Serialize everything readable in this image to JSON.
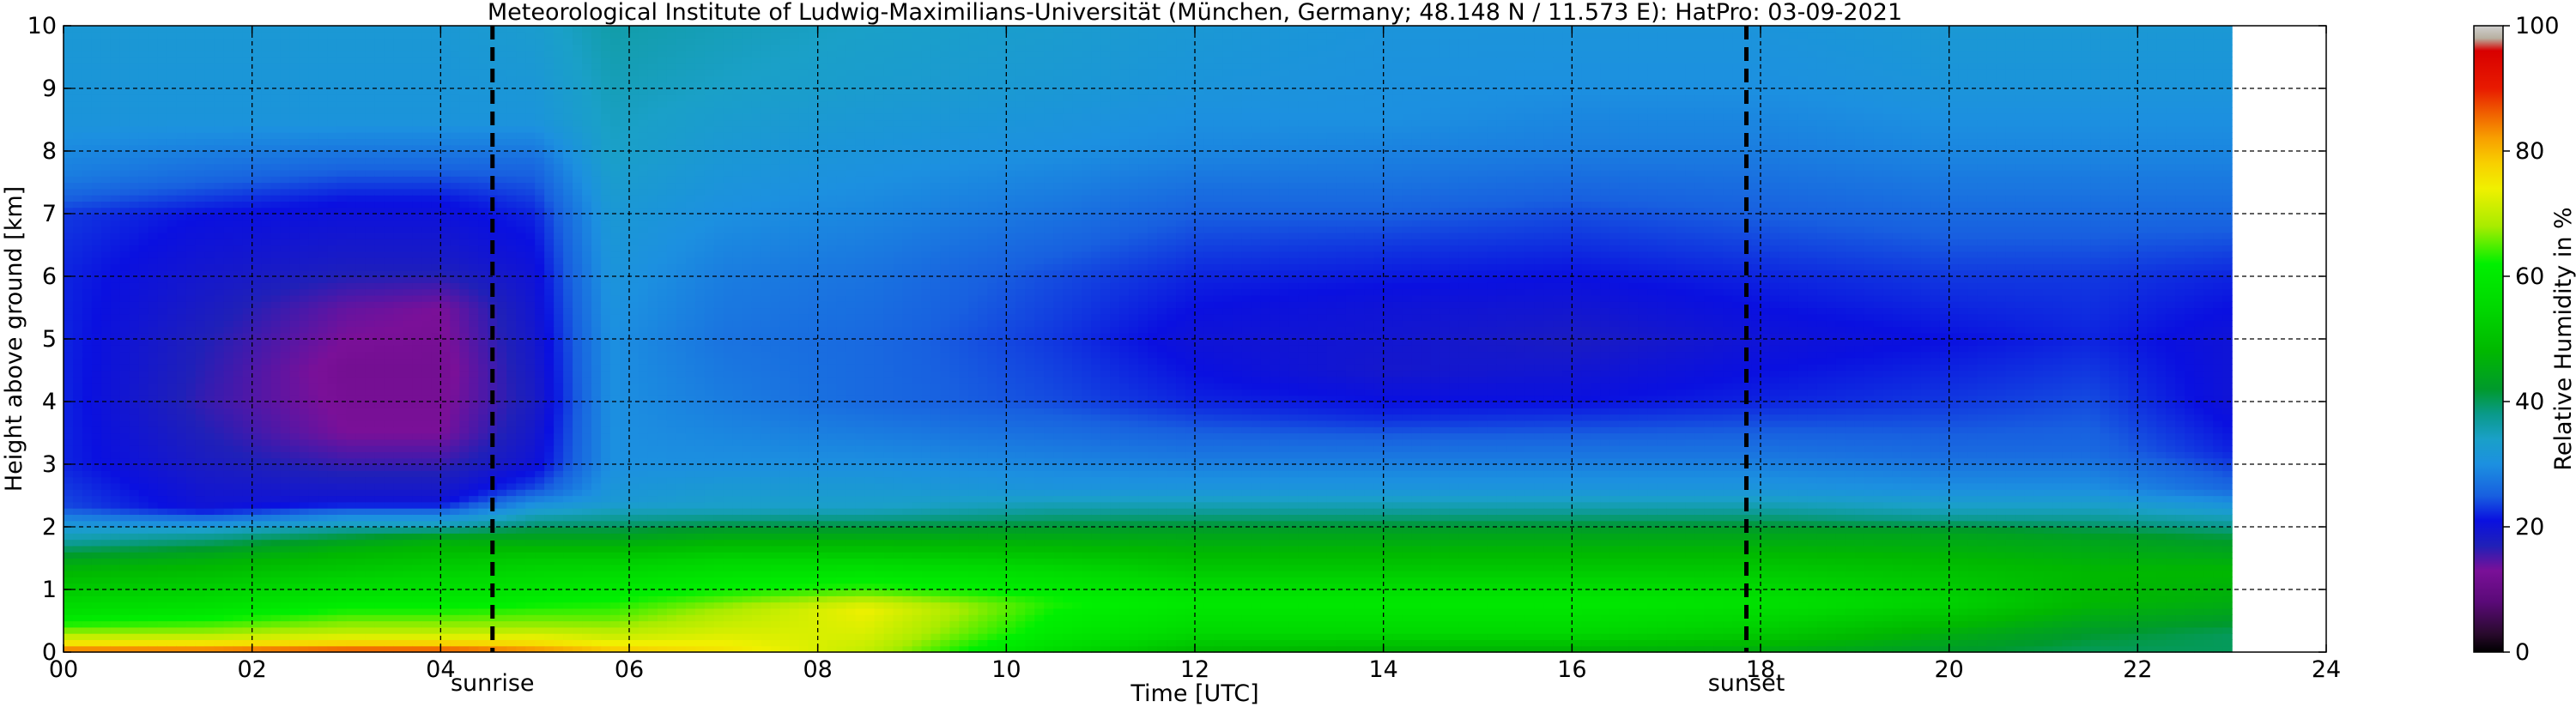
{
  "chart_data": {
    "type": "heatmap",
    "title": "Meteorological Institute of Ludwig-Maximilians-Universität (München, Germany; 48.148 N / 11.573 E):    HatPro: 03-09-2021",
    "xlabel": "Time [UTC]",
    "ylabel": "Height above ground [km]",
    "colorbar_label": "Relative Humidity in %",
    "xlim": [
      0,
      24
    ],
    "ylim": [
      0,
      10
    ],
    "data_end_time": 23,
    "x_ticks": [
      0,
      2,
      4,
      6,
      8,
      10,
      12,
      14,
      16,
      18,
      20,
      22,
      24
    ],
    "x_tick_labels": [
      "00",
      "02",
      "04",
      "06",
      "08",
      "10",
      "12",
      "14",
      "16",
      "18",
      "20",
      "22",
      "24"
    ],
    "y_ticks": [
      0,
      1,
      2,
      3,
      4,
      5,
      6,
      7,
      8,
      9,
      10
    ],
    "y_tick_labels": [
      "0",
      "1",
      "2",
      "3",
      "4",
      "5",
      "6",
      "7",
      "8",
      "9",
      "10"
    ],
    "colorbar_ticks": [
      0,
      20,
      40,
      60,
      80,
      100
    ],
    "colorbar_tick_labels": [
      "0",
      "20",
      "40",
      "60",
      "80",
      "100"
    ],
    "grid": true,
    "events": [
      {
        "label": "sunrise",
        "time": 4.55
      },
      {
        "label": "sunset",
        "time": 17.85
      }
    ],
    "colormap": [
      {
        "value": 0,
        "color": "#000000"
      },
      {
        "value": 3,
        "color": "#2a0a2e"
      },
      {
        "value": 8,
        "color": "#5a0a78"
      },
      {
        "value": 13,
        "color": "#7a1098"
      },
      {
        "value": 17,
        "color": "#2020b8"
      },
      {
        "value": 21,
        "color": "#0a10e0"
      },
      {
        "value": 25,
        "color": "#1860e0"
      },
      {
        "value": 30,
        "color": "#1c90e0"
      },
      {
        "value": 34,
        "color": "#1aa0c8"
      },
      {
        "value": 38,
        "color": "#0a9a8a"
      },
      {
        "value": 42,
        "color": "#009a2c"
      },
      {
        "value": 48,
        "color": "#00b800"
      },
      {
        "value": 55,
        "color": "#00d800"
      },
      {
        "value": 62,
        "color": "#00f000"
      },
      {
        "value": 68,
        "color": "#a8ec00"
      },
      {
        "value": 74,
        "color": "#f0f000"
      },
      {
        "value": 78,
        "color": "#f8d000"
      },
      {
        "value": 82,
        "color": "#f8a000"
      },
      {
        "value": 86,
        "color": "#f06000"
      },
      {
        "value": 90,
        "color": "#e81a00"
      },
      {
        "value": 96,
        "color": "#d80000"
      },
      {
        "value": 98,
        "color": "#b8b0a0"
      },
      {
        "value": 100,
        "color": "#d0d0d0"
      }
    ],
    "rh_profiles": [
      {
        "time": 0.0,
        "levels": [
          [
            0.0,
            88
          ],
          [
            0.1,
            78
          ],
          [
            0.3,
            68
          ],
          [
            0.6,
            58
          ],
          [
            1.0,
            52
          ],
          [
            1.4,
            46
          ],
          [
            1.8,
            36
          ],
          [
            2.1,
            30
          ],
          [
            2.3,
            24
          ],
          [
            3.0,
            22
          ],
          [
            4.0,
            22
          ],
          [
            5.0,
            22
          ],
          [
            6.0,
            22
          ],
          [
            7.0,
            23
          ],
          [
            7.6,
            28
          ],
          [
            8.5,
            31
          ],
          [
            10.0,
            32
          ]
        ]
      },
      {
        "time": 1.5,
        "levels": [
          [
            0.0,
            88
          ],
          [
            0.1,
            78
          ],
          [
            0.3,
            68
          ],
          [
            0.7,
            58
          ],
          [
            1.1,
            52
          ],
          [
            1.5,
            46
          ],
          [
            1.9,
            36
          ],
          [
            2.1,
            28
          ],
          [
            2.3,
            20
          ],
          [
            3.0,
            18
          ],
          [
            4.0,
            16
          ],
          [
            5.0,
            17
          ],
          [
            6.0,
            19
          ],
          [
            7.0,
            21
          ],
          [
            7.6,
            26
          ],
          [
            8.5,
            31
          ],
          [
            10.0,
            32
          ]
        ]
      },
      {
        "time": 3.0,
        "levels": [
          [
            0.0,
            90
          ],
          [
            0.1,
            80
          ],
          [
            0.3,
            70
          ],
          [
            0.8,
            60
          ],
          [
            1.3,
            52
          ],
          [
            1.7,
            46
          ],
          [
            2.0,
            36
          ],
          [
            2.2,
            28
          ],
          [
            2.4,
            20
          ],
          [
            3.0,
            16
          ],
          [
            3.5,
            13
          ],
          [
            4.5,
            12
          ],
          [
            5.5,
            14
          ],
          [
            6.2,
            18
          ],
          [
            7.2,
            21
          ],
          [
            7.8,
            26
          ],
          [
            8.5,
            31
          ],
          [
            10.0,
            32
          ]
        ]
      },
      {
        "time": 4.0,
        "levels": [
          [
            0.0,
            90
          ],
          [
            0.1,
            80
          ],
          [
            0.3,
            70
          ],
          [
            0.8,
            60
          ],
          [
            1.4,
            52
          ],
          [
            1.8,
            46
          ],
          [
            2.0,
            36
          ],
          [
            2.2,
            28
          ],
          [
            2.4,
            20
          ],
          [
            3.0,
            16
          ],
          [
            3.5,
            13
          ],
          [
            4.5,
            12
          ],
          [
            5.5,
            13
          ],
          [
            6.2,
            18
          ],
          [
            7.2,
            21
          ],
          [
            7.8,
            26
          ],
          [
            8.5,
            31
          ],
          [
            10.0,
            32
          ]
        ]
      },
      {
        "time": 5.0,
        "levels": [
          [
            0.0,
            86
          ],
          [
            0.1,
            78
          ],
          [
            0.4,
            68
          ],
          [
            0.9,
            60
          ],
          [
            1.5,
            52
          ],
          [
            2.0,
            40
          ],
          [
            2.3,
            32
          ],
          [
            2.6,
            24
          ],
          [
            3.0,
            20
          ],
          [
            4.0,
            18
          ],
          [
            5.0,
            19
          ],
          [
            6.0,
            20
          ],
          [
            7.0,
            22
          ],
          [
            7.8,
            26
          ],
          [
            8.5,
            31
          ],
          [
            10.0,
            33
          ]
        ]
      },
      {
        "time": 5.8,
        "levels": [
          [
            0.0,
            80
          ],
          [
            0.2,
            72
          ],
          [
            0.5,
            66
          ],
          [
            1.0,
            60
          ],
          [
            1.5,
            52
          ],
          [
            2.0,
            40
          ],
          [
            2.4,
            32
          ],
          [
            3.0,
            30
          ],
          [
            4.0,
            30
          ],
          [
            5.0,
            30
          ],
          [
            6.0,
            31
          ],
          [
            7.0,
            32
          ],
          [
            8.0,
            34
          ],
          [
            9.0,
            35
          ],
          [
            10.0,
            36
          ]
        ]
      },
      {
        "time": 7.0,
        "levels": [
          [
            0.0,
            76
          ],
          [
            0.3,
            72
          ],
          [
            0.7,
            68
          ],
          [
            1.0,
            62
          ],
          [
            1.5,
            54
          ],
          [
            1.9,
            44
          ],
          [
            2.3,
            34
          ],
          [
            3.0,
            30
          ],
          [
            4.0,
            28
          ],
          [
            5.0,
            27
          ],
          [
            6.0,
            28
          ],
          [
            7.0,
            30
          ],
          [
            8.0,
            32
          ],
          [
            9.0,
            34
          ],
          [
            10.0,
            35
          ]
        ]
      },
      {
        "time": 8.5,
        "levels": [
          [
            0.0,
            70
          ],
          [
            0.3,
            72
          ],
          [
            0.7,
            74
          ],
          [
            1.0,
            64
          ],
          [
            1.4,
            56
          ],
          [
            1.9,
            44
          ],
          [
            2.3,
            34
          ],
          [
            3.0,
            30
          ],
          [
            4.0,
            26
          ],
          [
            5.0,
            26
          ],
          [
            6.0,
            27
          ],
          [
            7.0,
            29
          ],
          [
            8.0,
            31
          ],
          [
            9.0,
            33
          ],
          [
            10.0,
            34
          ]
        ]
      },
      {
        "time": 10.5,
        "levels": [
          [
            0.0,
            55
          ],
          [
            0.3,
            60
          ],
          [
            0.8,
            63
          ],
          [
            1.3,
            56
          ],
          [
            1.8,
            46
          ],
          [
            2.2,
            38
          ],
          [
            2.6,
            31
          ],
          [
            3.2,
            28
          ],
          [
            4.0,
            24
          ],
          [
            5.0,
            23
          ],
          [
            6.0,
            24
          ],
          [
            7.0,
            27
          ],
          [
            8.0,
            30
          ],
          [
            9.0,
            32
          ],
          [
            10.0,
            33
          ]
        ]
      },
      {
        "time": 12.0,
        "levels": [
          [
            0.0,
            48
          ],
          [
            0.3,
            55
          ],
          [
            0.8,
            60
          ],
          [
            1.3,
            52
          ],
          [
            1.9,
            44
          ],
          [
            2.2,
            38
          ],
          [
            2.6,
            31
          ],
          [
            3.2,
            27
          ],
          [
            4.0,
            22
          ],
          [
            5.0,
            20
          ],
          [
            6.0,
            22
          ],
          [
            7.0,
            25
          ],
          [
            8.0,
            29
          ],
          [
            9.0,
            31
          ],
          [
            10.0,
            32
          ]
        ]
      },
      {
        "time": 14.0,
        "levels": [
          [
            0.0,
            46
          ],
          [
            0.3,
            55
          ],
          [
            0.8,
            60
          ],
          [
            1.3,
            52
          ],
          [
            1.9,
            44
          ],
          [
            2.2,
            38
          ],
          [
            2.6,
            31
          ],
          [
            3.2,
            27
          ],
          [
            3.8,
            22
          ],
          [
            4.5,
            19
          ],
          [
            5.5,
            20
          ],
          [
            6.5,
            23
          ],
          [
            7.5,
            27
          ],
          [
            8.5,
            30
          ],
          [
            10.0,
            31
          ]
        ]
      },
      {
        "time": 16.0,
        "levels": [
          [
            0.0,
            46
          ],
          [
            0.3,
            55
          ],
          [
            0.8,
            60
          ],
          [
            1.3,
            52
          ],
          [
            1.9,
            44
          ],
          [
            2.2,
            38
          ],
          [
            2.6,
            31
          ],
          [
            3.2,
            27
          ],
          [
            4.0,
            21
          ],
          [
            5.0,
            18
          ],
          [
            6.0,
            21
          ],
          [
            7.0,
            24
          ],
          [
            8.0,
            28
          ],
          [
            9.0,
            30
          ],
          [
            10.0,
            31
          ]
        ]
      },
      {
        "time": 18.0,
        "levels": [
          [
            0.0,
            45
          ],
          [
            0.3,
            52
          ],
          [
            0.8,
            58
          ],
          [
            1.3,
            52
          ],
          [
            1.9,
            44
          ],
          [
            2.2,
            38
          ],
          [
            2.6,
            31
          ],
          [
            3.2,
            27
          ],
          [
            4.0,
            22
          ],
          [
            5.0,
            20
          ],
          [
            6.0,
            22
          ],
          [
            7.0,
            25
          ],
          [
            8.0,
            28
          ],
          [
            9.0,
            30
          ],
          [
            10.0,
            31
          ]
        ]
      },
      {
        "time": 20.0,
        "levels": [
          [
            0.0,
            42
          ],
          [
            0.3,
            46
          ],
          [
            0.8,
            54
          ],
          [
            1.3,
            50
          ],
          [
            1.9,
            44
          ],
          [
            2.2,
            36
          ],
          [
            2.6,
            30
          ],
          [
            3.2,
            26
          ],
          [
            4.0,
            23
          ],
          [
            5.0,
            21
          ],
          [
            6.0,
            23
          ],
          [
            7.0,
            26
          ],
          [
            8.0,
            29
          ],
          [
            9.0,
            31
          ],
          [
            10.0,
            32
          ]
        ]
      },
      {
        "time": 21.5,
        "levels": [
          [
            0.0,
            40
          ],
          [
            0.3,
            42
          ],
          [
            0.8,
            48
          ],
          [
            1.3,
            48
          ],
          [
            1.8,
            44
          ],
          [
            2.2,
            36
          ],
          [
            2.6,
            30
          ],
          [
            3.2,
            26
          ],
          [
            4.0,
            24
          ],
          [
            5.0,
            22
          ],
          [
            6.0,
            23
          ],
          [
            7.0,
            26
          ],
          [
            8.0,
            29
          ],
          [
            9.0,
            31
          ],
          [
            10.0,
            32
          ]
        ]
      },
      {
        "time": 23.0,
        "levels": [
          [
            0.0,
            40
          ],
          [
            0.3,
            40
          ],
          [
            0.8,
            46
          ],
          [
            1.3,
            48
          ],
          [
            1.8,
            42
          ],
          [
            2.2,
            34
          ],
          [
            2.6,
            26
          ],
          [
            3.2,
            22
          ],
          [
            4.0,
            20
          ],
          [
            5.0,
            20
          ],
          [
            6.0,
            22
          ],
          [
            7.0,
            26
          ],
          [
            8.0,
            29
          ],
          [
            9.0,
            31
          ],
          [
            10.0,
            32
          ]
        ]
      }
    ]
  }
}
